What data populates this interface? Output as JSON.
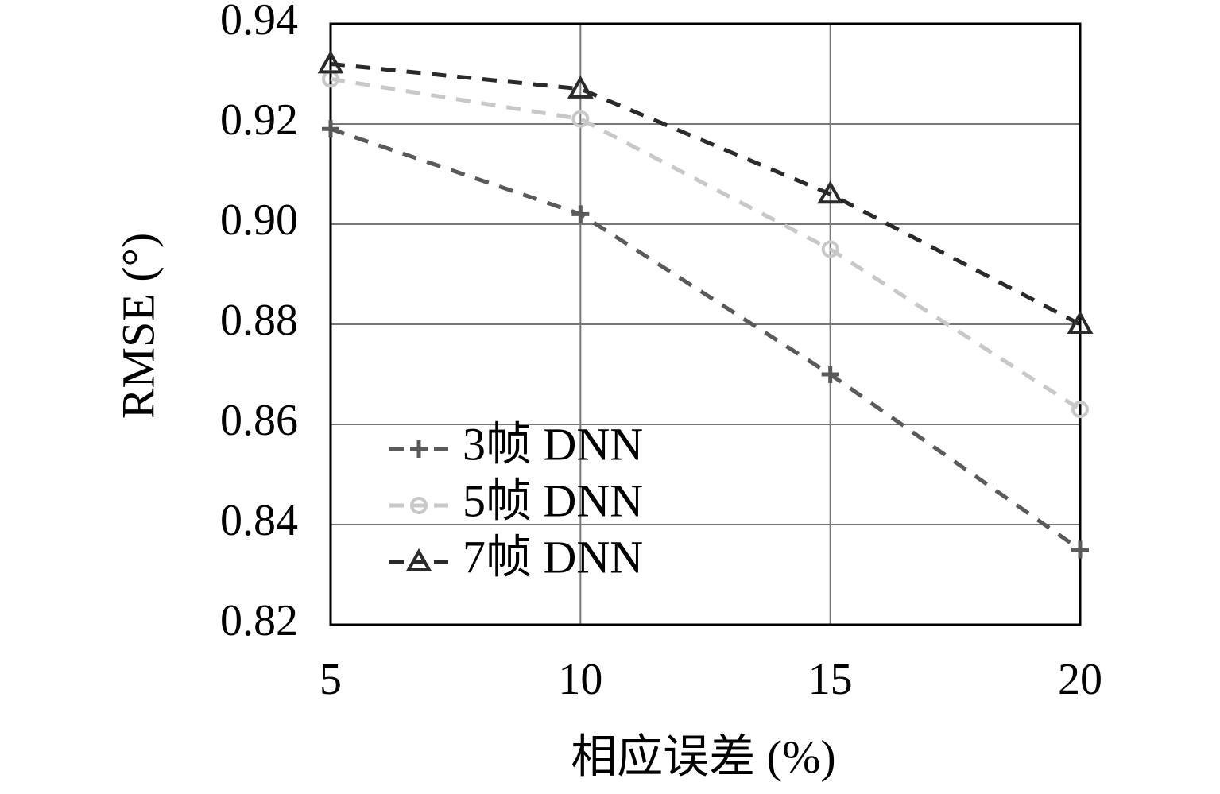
{
  "chart_data": {
    "type": "line",
    "x_label": "相应误差 (%)",
    "y_label": "RMSE (°)",
    "x": [
      5,
      10,
      15,
      20
    ],
    "series": [
      {
        "name": "3帧 DNN",
        "color": "#5a5a5a",
        "marker": "plus",
        "values": [
          0.919,
          0.902,
          0.87,
          0.835
        ]
      },
      {
        "name": "5帧 DNN",
        "color": "#c8c8c8",
        "marker": "circle",
        "values": [
          0.929,
          0.921,
          0.895,
          0.863
        ]
      },
      {
        "name": "7帧 DNN",
        "color": "#2a2a2a",
        "marker": "triangle",
        "values": [
          0.932,
          0.927,
          0.906,
          0.88
        ]
      }
    ],
    "xlim": [
      5,
      20
    ],
    "xticks": [
      5,
      10,
      15,
      20
    ],
    "ylim": [
      0.82,
      0.94
    ],
    "yticks": [
      0.82,
      0.84,
      0.86,
      0.88,
      {
        "value": 0.9,
        "label": "0.90"
      },
      0.92,
      0.94
    ],
    "grid": true,
    "legend": "lower left"
  }
}
